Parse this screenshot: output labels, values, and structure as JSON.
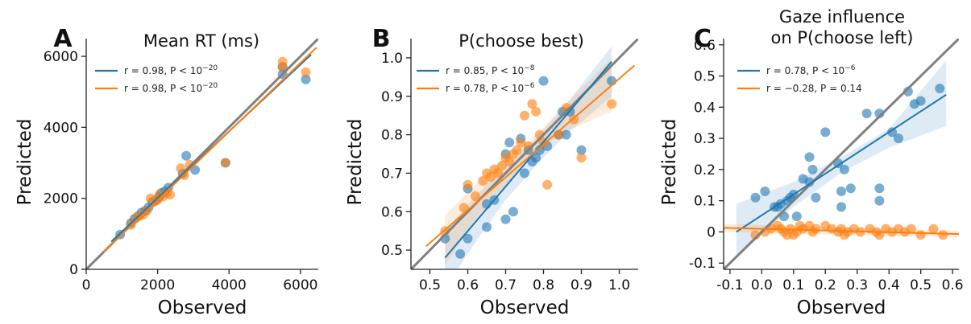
{
  "chart_data": [
    {
      "type": "scatter",
      "letter": "A",
      "title": [
        "Mean RT (ms)"
      ],
      "xlabel": "Observed",
      "ylabel": "Predicted",
      "xlim": [
        0,
        6500
      ],
      "ylim": [
        0,
        6500
      ],
      "xticks": [
        0,
        2000,
        4000,
        6000
      ],
      "xtick_labels": [
        "0",
        "2000",
        "4000",
        "6000"
      ],
      "yticks": [
        0,
        2000,
        4000,
        6000
      ],
      "ytick_labels": [
        "0",
        "2000",
        "4000",
        "6000"
      ],
      "identity_line": true,
      "legend": [
        {
          "stat": "r = 0.98, P < 10",
          "exp": "−20",
          "color": "#1f77b4"
        },
        {
          "stat": "r = 0.98, P < 10",
          "exp": "−20",
          "color": "#ff7f0e"
        }
      ],
      "series": [
        {
          "color": "#1f77b4",
          "fit": {
            "x": [
              700,
              6300
            ],
            "y": [
              780,
              6050
            ]
          },
          "points": [
            [
              950,
              980
            ],
            [
              1250,
              1300
            ],
            [
              1350,
              1420
            ],
            [
              1450,
              1500
            ],
            [
              1550,
              1600
            ],
            [
              1650,
              1650
            ],
            [
              1750,
              1750
            ],
            [
              1850,
              1900
            ],
            [
              1950,
              1950
            ],
            [
              2050,
              2050
            ],
            [
              2100,
              2150
            ],
            [
              2200,
              2200
            ],
            [
              2300,
              2300
            ],
            [
              2700,
              2700
            ],
            [
              2800,
              3200
            ],
            [
              3050,
              2800
            ],
            [
              3900,
              3000
            ],
            [
              5500,
              5700
            ],
            [
              5500,
              5500
            ],
            [
              6150,
              5350
            ]
          ]
        },
        {
          "color": "#ff7f0e",
          "fit": {
            "x": [
              500,
              6450
            ],
            "y": [
              500,
              6250
            ]
          },
          "points": [
            [
              1250,
              1250
            ],
            [
              1400,
              1450
            ],
            [
              1500,
              1500
            ],
            [
              1600,
              1550
            ],
            [
              1700,
              1650
            ],
            [
              1800,
              2000
            ],
            [
              1900,
              1900
            ],
            [
              2000,
              1950
            ],
            [
              2050,
              2100
            ],
            [
              2150,
              2050
            ],
            [
              2250,
              2150
            ],
            [
              2350,
              2100
            ],
            [
              2650,
              2850
            ],
            [
              2750,
              2650
            ],
            [
              2900,
              2950
            ],
            [
              3900,
              3000
            ],
            [
              5500,
              5850
            ],
            [
              5500,
              5700
            ],
            [
              6150,
              5550
            ]
          ]
        }
      ]
    },
    {
      "type": "scatter",
      "letter": "B",
      "title": [
        "P(choose best)"
      ],
      "xlabel": "Observed",
      "ylabel": "Predicted",
      "xlim": [
        0.45,
        1.05
      ],
      "ylim": [
        0.45,
        1.05
      ],
      "xticks": [
        0.5,
        0.6,
        0.7,
        0.8,
        0.9,
        1.0
      ],
      "xtick_labels": [
        "0.5",
        "0.6",
        "0.7",
        "0.8",
        "0.9",
        "1.0"
      ],
      "yticks": [
        0.5,
        0.6,
        0.7,
        0.8,
        0.9,
        1.0
      ],
      "ytick_labels": [
        "0.5",
        "0.6",
        "0.7",
        "0.8",
        "0.9",
        "1.0"
      ],
      "identity_line": true,
      "legend": [
        {
          "stat": "r = 0.85, P < 10",
          "exp": "−8",
          "color": "#1f77b4"
        },
        {
          "stat": "r = 0.78, P < 10",
          "exp": "−6",
          "color": "#ff7f0e"
        }
      ],
      "series": [
        {
          "color": "#1f77b4",
          "fit": {
            "x": [
              0.54,
              0.98
            ],
            "y": [
              0.48,
              0.99
            ]
          },
          "band": {
            "x": [
              0.54,
              0.62,
              0.7,
              0.78,
              0.86,
              0.98
            ],
            "lower": [
              0.4,
              0.52,
              0.63,
              0.72,
              0.8,
              0.9
            ],
            "upper": [
              0.55,
              0.64,
              0.72,
              0.79,
              0.88,
              1.03
            ]
          },
          "points": [
            [
              0.54,
              0.53
            ],
            [
              0.58,
              0.49
            ],
            [
              0.6,
              0.53
            ],
            [
              0.6,
              0.66
            ],
            [
              0.65,
              0.62
            ],
            [
              0.65,
              0.56
            ],
            [
              0.67,
              0.63
            ],
            [
              0.7,
              0.75
            ],
            [
              0.7,
              0.58
            ],
            [
              0.71,
              0.78
            ],
            [
              0.72,
              0.6
            ],
            [
              0.74,
              0.79
            ],
            [
              0.75,
              0.7
            ],
            [
              0.76,
              0.76
            ],
            [
              0.77,
              0.73
            ],
            [
              0.78,
              0.74
            ],
            [
              0.79,
              0.76
            ],
            [
              0.8,
              0.94
            ],
            [
              0.81,
              0.77
            ],
            [
              0.84,
              0.8
            ],
            [
              0.85,
              0.86
            ],
            [
              0.86,
              0.8
            ],
            [
              0.87,
              0.86
            ],
            [
              0.9,
              0.76
            ],
            [
              0.98,
              0.94
            ]
          ]
        },
        {
          "color": "#ff7f0e",
          "fit": {
            "x": [
              0.49,
              1.04
            ],
            "y": [
              0.51,
              0.98
            ]
          },
          "band": {
            "x": [
              0.54,
              0.62,
              0.7,
              0.78,
              0.86,
              0.98
            ],
            "lower": [
              0.46,
              0.58,
              0.67,
              0.75,
              0.81,
              0.86
            ],
            "upper": [
              0.59,
              0.67,
              0.74,
              0.8,
              0.88,
              1.0
            ]
          },
          "points": [
            [
              0.54,
              0.55
            ],
            [
              0.59,
              0.61
            ],
            [
              0.6,
              0.67
            ],
            [
              0.62,
              0.64
            ],
            [
              0.64,
              0.68
            ],
            [
              0.65,
              0.7
            ],
            [
              0.66,
              0.69
            ],
            [
              0.67,
              0.71
            ],
            [
              0.68,
              0.7
            ],
            [
              0.69,
              0.72
            ],
            [
              0.7,
              0.74
            ],
            [
              0.71,
              0.73
            ],
            [
              0.72,
              0.75
            ],
            [
              0.73,
              0.76
            ],
            [
              0.74,
              0.78
            ],
            [
              0.75,
              0.85
            ],
            [
              0.76,
              0.77
            ],
            [
              0.77,
              0.88
            ],
            [
              0.78,
              0.86
            ],
            [
              0.79,
              0.8
            ],
            [
              0.8,
              0.78
            ],
            [
              0.81,
              0.67
            ],
            [
              0.84,
              0.8
            ],
            [
              0.86,
              0.87
            ],
            [
              0.88,
              0.84
            ],
            [
              0.9,
              0.74
            ],
            [
              0.98,
              0.88
            ]
          ]
        }
      ]
    },
    {
      "type": "scatter",
      "letter": "C",
      "title": [
        "Gaze influence",
        "on P(choose left)"
      ],
      "xlabel": "Observed",
      "ylabel": "Predicted",
      "xlim": [
        -0.12,
        0.62
      ],
      "ylim": [
        -0.12,
        0.62
      ],
      "xticks": [
        -0.1,
        0.0,
        0.1,
        0.2,
        0.3,
        0.4,
        0.5,
        0.6
      ],
      "xtick_labels": [
        "-0.1",
        "0.0",
        "0.1",
        "0.2",
        "0.3",
        "0.4",
        "0.5",
        "0.6"
      ],
      "yticks": [
        -0.1,
        0.0,
        0.1,
        0.2,
        0.3,
        0.4,
        0.5,
        0.6
      ],
      "ytick_labels": [
        "-0.1",
        "0",
        "0.1",
        "0.2",
        "0.3",
        "0.4",
        "0.5",
        "0.6"
      ],
      "identity_line": true,
      "legend": [
        {
          "stat": "r = 0.78, P < 10",
          "exp": "−6",
          "color": "#1f77b4"
        },
        {
          "stat": "r = −0.28, P = 0.14",
          "exp": "",
          "color": "#ff7f0e"
        }
      ],
      "series": [
        {
          "color": "#1f77b4",
          "fit": {
            "x": [
              -0.08,
              0.58
            ],
            "y": [
              0.0,
              0.44
            ]
          },
          "band": {
            "x": [
              -0.08,
              0.1,
              0.25,
              0.4,
              0.58
            ],
            "lower": [
              -0.08,
              0.08,
              0.19,
              0.27,
              0.34
            ],
            "upper": [
              0.09,
              0.16,
              0.24,
              0.33,
              0.55
            ]
          },
          "points": [
            [
              -0.02,
              0.11
            ],
            [
              0.01,
              0.13
            ],
            [
              0.04,
              0.08
            ],
            [
              0.05,
              0.08
            ],
            [
              0.06,
              0.09
            ],
            [
              0.07,
              0.05
            ],
            [
              0.08,
              0.1
            ],
            [
              0.09,
              0.11
            ],
            [
              0.1,
              0.12
            ],
            [
              0.11,
              0.05
            ],
            [
              0.13,
              0.17
            ],
            [
              0.15,
              0.24
            ],
            [
              0.15,
              0.16
            ],
            [
              0.16,
              0.2
            ],
            [
              0.17,
              0.11
            ],
            [
              0.2,
              0.32
            ],
            [
              0.24,
              0.22
            ],
            [
              0.25,
              0.13
            ],
            [
              0.25,
              0.08
            ],
            [
              0.26,
              0.2
            ],
            [
              0.28,
              0.14
            ],
            [
              0.33,
              0.38
            ],
            [
              0.37,
              0.38
            ],
            [
              0.37,
              0.14
            ],
            [
              0.37,
              0.1
            ],
            [
              0.41,
              0.32
            ],
            [
              0.43,
              0.3
            ],
            [
              0.46,
              0.45
            ],
            [
              0.48,
              0.41
            ],
            [
              0.5,
              0.42
            ],
            [
              0.56,
              0.46
            ]
          ]
        },
        {
          "color": "#ff7f0e",
          "fit": {
            "x": [
              -0.12,
              0.62
            ],
            "y": [
              0.013,
              -0.007
            ]
          },
          "band": {
            "x": [
              -0.12,
              0.62
            ],
            "lower": [
              0.0,
              -0.018
            ],
            "upper": [
              0.026,
              0.004
            ]
          },
          "points": [
            [
              -0.02,
              -0.01
            ],
            [
              0.01,
              0.0
            ],
            [
              0.03,
              0.01
            ],
            [
              0.05,
              0.02
            ],
            [
              0.06,
              0.01
            ],
            [
              0.07,
              0.0
            ],
            [
              0.08,
              -0.01
            ],
            [
              0.09,
              0.01
            ],
            [
              0.1,
              -0.01
            ],
            [
              0.11,
              0.0
            ],
            [
              0.12,
              0.02
            ],
            [
              0.13,
              0.01
            ],
            [
              0.15,
              0.02
            ],
            [
              0.16,
              0.0
            ],
            [
              0.17,
              0.01
            ],
            [
              0.2,
              0.02
            ],
            [
              0.22,
              0.01
            ],
            [
              0.24,
              0.0
            ],
            [
              0.25,
              0.01
            ],
            [
              0.26,
              -0.01
            ],
            [
              0.27,
              0.0
            ],
            [
              0.29,
              0.01
            ],
            [
              0.31,
              0.0
            ],
            [
              0.34,
              0.01
            ],
            [
              0.36,
              0.0
            ],
            [
              0.37,
              -0.01
            ],
            [
              0.39,
              0.01
            ],
            [
              0.41,
              0.0
            ],
            [
              0.43,
              0.01
            ],
            [
              0.45,
              0.0
            ],
            [
              0.47,
              0.01
            ],
            [
              0.5,
              -0.01
            ],
            [
              0.54,
              0.01
            ],
            [
              0.57,
              -0.01
            ]
          ]
        }
      ]
    }
  ]
}
